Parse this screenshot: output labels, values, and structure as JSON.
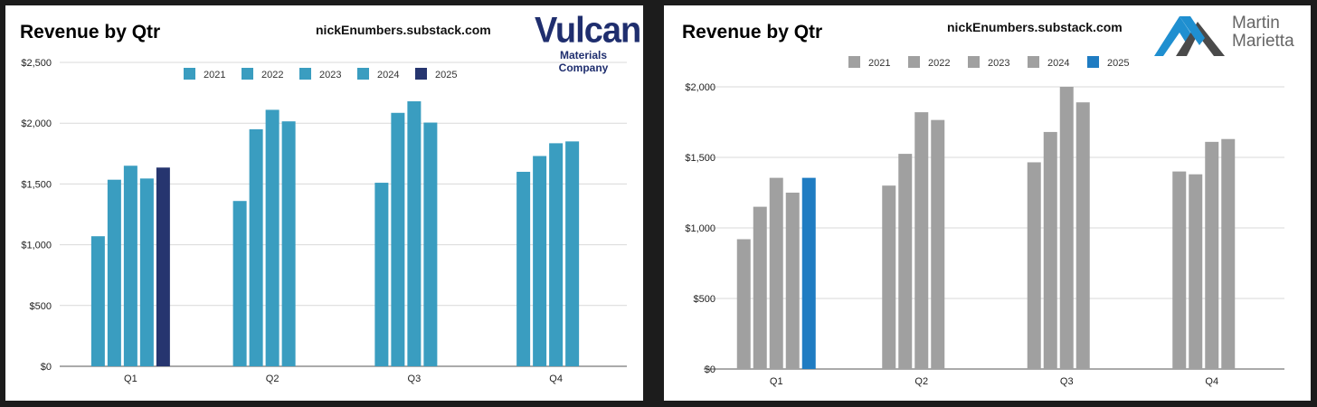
{
  "charts": [
    {
      "title": "Revenue by Qtr",
      "source": "nickEnumbers.substack.com",
      "logo": {
        "name": "Vulcan",
        "subtitle": "Materials Company"
      },
      "title_color": "#1f2e6e",
      "y_ticks": [
        "$0",
        "$500",
        "$1,000",
        "$1,500",
        "$2,000",
        "$2,500"
      ],
      "legend": [
        "2021",
        "2022",
        "2023",
        "2024",
        "2025"
      ],
      "colors": [
        "#3a9dc0",
        "#3a9dc0",
        "#3a9dc0",
        "#3a9dc0",
        "#26356f"
      ]
    },
    {
      "title": "Revenue by Qtr",
      "source": "nickEnumbers.substack.com",
      "logo": {
        "name": "Martin Marietta"
      },
      "title_color": "#1f7cc2",
      "y_ticks": [
        "$0",
        "$500",
        "$1,000",
        "$1,500",
        "$2,000"
      ],
      "legend": [
        "2021",
        "2022",
        "2023",
        "2024",
        "2025"
      ],
      "colors": [
        "#a0a0a0",
        "#a0a0a0",
        "#a0a0a0",
        "#a0a0a0",
        "#1f7cc2"
      ]
    }
  ],
  "chart_data": [
    {
      "type": "bar",
      "title": "Revenue by Qtr",
      "categories": [
        "Q1",
        "Q2",
        "Q3",
        "Q4"
      ],
      "series": [
        {
          "name": "2021",
          "values": [
            1070,
            1360,
            1510,
            1600
          ]
        },
        {
          "name": "2022",
          "values": [
            1535,
            1950,
            2085,
            1730
          ]
        },
        {
          "name": "2023",
          "values": [
            1650,
            2110,
            2180,
            1835
          ]
        },
        {
          "name": "2024",
          "values": [
            1545,
            2015,
            2005,
            1850
          ]
        },
        {
          "name": "2025",
          "values": [
            1635,
            null,
            null,
            null
          ]
        }
      ],
      "ylim": [
        0,
        2500
      ],
      "grid": true,
      "legend_position": "top"
    },
    {
      "type": "bar",
      "title": "Revenue by Qtr",
      "categories": [
        "Q1",
        "Q2",
        "Q3",
        "Q4"
      ],
      "series": [
        {
          "name": "2021",
          "values": [
            920,
            1300,
            1465,
            1400
          ]
        },
        {
          "name": "2022",
          "values": [
            1150,
            1525,
            1680,
            1380
          ]
        },
        {
          "name": "2023",
          "values": [
            1355,
            1820,
            2000,
            1610
          ]
        },
        {
          "name": "2024",
          "values": [
            1250,
            1765,
            1890,
            1630
          ]
        },
        {
          "name": "2025",
          "values": [
            1355,
            null,
            null,
            null
          ]
        }
      ],
      "ylim": [
        0,
        2000
      ],
      "grid": true,
      "legend_position": "top"
    }
  ]
}
